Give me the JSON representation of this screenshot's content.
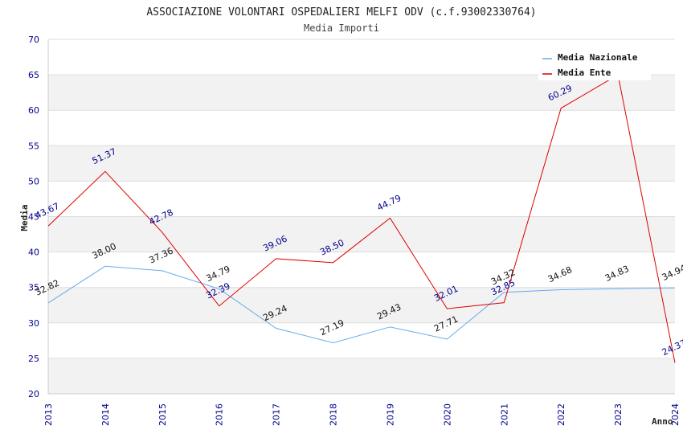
{
  "chart_data": {
    "type": "line",
    "title": "ASSOCIAZIONE VOLONTARI OSPEDALIERI MELFI ODV (c.f.93002330764)",
    "subtitle": "Media Importi",
    "xlabel": "Anno",
    "ylabel": "Media",
    "ylim": [
      20,
      70
    ],
    "yticks": [
      "20",
      "25",
      "30",
      "35",
      "40",
      "45",
      "50",
      "55",
      "60",
      "65",
      "70"
    ],
    "categories": [
      "2013",
      "2014",
      "2015",
      "2016",
      "2017",
      "2018",
      "2019",
      "2020",
      "2021",
      "2022",
      "2023",
      "2024"
    ],
    "grid": true,
    "legend_position": "top-right",
    "series": [
      {
        "name": "Media Nazionale",
        "color": "#66aaee",
        "values": [
          32.82,
          38.0,
          37.36,
          34.79,
          29.24,
          27.19,
          29.43,
          27.71,
          34.32,
          34.68,
          34.83,
          34.94
        ],
        "labels": [
          "32.82",
          "38.00",
          "37.36",
          "34.79",
          "29.24",
          "27.19",
          "29.43",
          "27.71",
          "34.32",
          "34.68",
          "34.83",
          "34.94"
        ]
      },
      {
        "name": "Media Ente",
        "color": "#dd0000",
        "values": [
          43.67,
          51.37,
          42.78,
          32.39,
          39.06,
          38.5,
          44.79,
          32.01,
          32.85,
          60.29,
          65.0,
          24.37
        ],
        "labels": [
          "43.67",
          "51.37",
          "42.78",
          "32.39",
          "39.06",
          "38.50",
          "44.79",
          "32.01",
          "32.85",
          "60.29",
          "",
          "24.37"
        ]
      }
    ]
  }
}
